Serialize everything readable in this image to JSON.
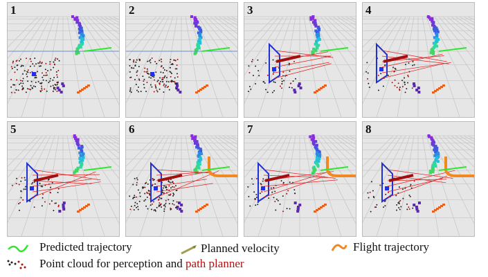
{
  "panels": [
    {
      "label": "1"
    },
    {
      "label": "2"
    },
    {
      "label": "3"
    },
    {
      "label": "4"
    },
    {
      "label": "5"
    },
    {
      "label": "6"
    },
    {
      "label": "7"
    },
    {
      "label": "8"
    }
  ],
  "legend": [
    {
      "text": "Predicted trajectory"
    },
    {
      "text": "Planned velocity"
    },
    {
      "text": "Flight trajectory"
    },
    {
      "text": "Point cloud for perception and",
      "highlight": "path planner"
    }
  ]
}
